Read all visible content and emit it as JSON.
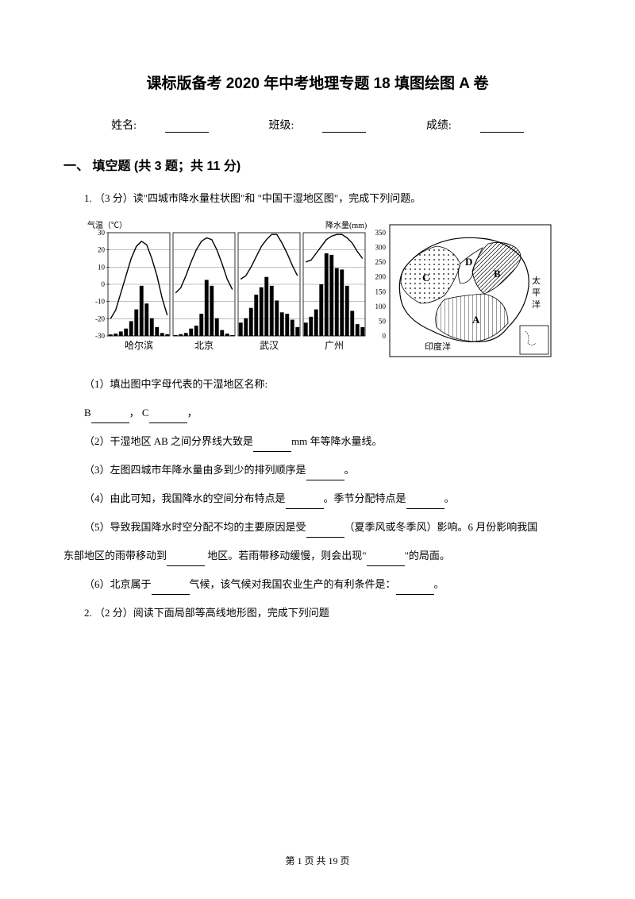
{
  "title": "课标版备考 2020 年中考地理专题 18 填图绘图 A 卷",
  "info": {
    "name_label": "姓名:",
    "class_label": "班级:",
    "score_label": "成绩:"
  },
  "section1": {
    "heading": "一、 填空题 (共 3 题；共 11 分)",
    "q1": {
      "stem": "1. （3 分）读\"四城市降水量柱状图\"和 \"中国干湿地区图\"，完成下列问题。",
      "charts": {
        "temp_axis_label": "气温（℃）",
        "precip_axis_label": "降水量(mm)",
        "temp_ticks": [
          -30,
          -20,
          -10,
          0,
          10,
          20,
          30
        ],
        "precip_ticks": [
          0,
          50,
          100,
          150,
          200,
          250,
          300,
          350
        ],
        "cities": [
          {
            "name": "哈尔滨",
            "temp_curve": [
              -20,
              -15,
              -5,
              5,
              15,
              22,
              25,
              23,
              15,
              5,
              -8,
              -18
            ],
            "bars": [
              5,
              8,
              15,
              25,
              50,
              90,
              170,
              110,
              60,
              30,
              10,
              6
            ]
          },
          {
            "name": "北京",
            "temp_curve": [
              -5,
              -2,
              5,
              13,
              20,
              25,
              27,
              26,
              20,
              12,
              3,
              -3
            ],
            "bars": [
              3,
              6,
              10,
              25,
              35,
              75,
              190,
              170,
              60,
              20,
              8,
              3
            ]
          },
          {
            "name": "武汉",
            "temp_curve": [
              3,
              5,
              10,
              16,
              22,
              26,
              29,
              29,
              24,
              18,
              11,
              5
            ],
            "bars": [
              45,
              60,
              95,
              140,
              165,
              200,
              170,
              120,
              80,
              75,
              55,
              30
            ]
          },
          {
            "name": "广州",
            "temp_curve": [
              13,
              14,
              18,
              22,
              26,
              28,
              29,
              29,
              27,
              24,
              19,
              15
            ],
            "bars": [
              45,
              65,
              90,
              175,
              280,
              275,
              230,
              225,
              170,
              85,
              40,
              30
            ]
          }
        ],
        "map": {
          "labels": [
            "A",
            "B",
            "C",
            "D"
          ],
          "pacific": "太平洋",
          "indian": "印度洋"
        },
        "stroke": "#000000",
        "fill": "#000000",
        "bg": "#ffffff",
        "font_size_axis": 9,
        "font_size_city": 12
      },
      "sub1_pre": "（1）填出图中字母代表的干湿地区名称:",
      "sub1_line": "B",
      "sub1_sep": "，  C",
      "sub1_end": "，",
      "sub2_a": "（2）干湿地区 AB 之间分界线大致是",
      "sub2_b": "mm 年等降水量线。",
      "sub3_a": "（3）左图四城市年降水量由多到少的排列顺序是",
      "sub3_b": "。",
      "sub4_a": "（4）由此可知，我国降水的空间分布特点是",
      "sub4_b": "。季节分配特点是",
      "sub4_c": "。",
      "sub5_a": "（5）导致我国降水时空分配不均的主要原因是受",
      "sub5_b": "（夏季风或冬季风）影响。6 月份影响我国",
      "sub5_c": "东部地区的雨带移动到",
      "sub5_d": " 地区。若雨带移动缓慢，则会出现\"",
      "sub5_e": "\"的局面。",
      "sub6_a": "（6）北京属于",
      "sub6_b": "气候，该气候对我国农业生产的有利条件是：",
      "sub6_c": "。"
    },
    "q2": {
      "stem": "2. （2 分）阅读下面局部等高线地形图，完成下列问题"
    }
  },
  "footer": "第 1 页 共 19 页"
}
